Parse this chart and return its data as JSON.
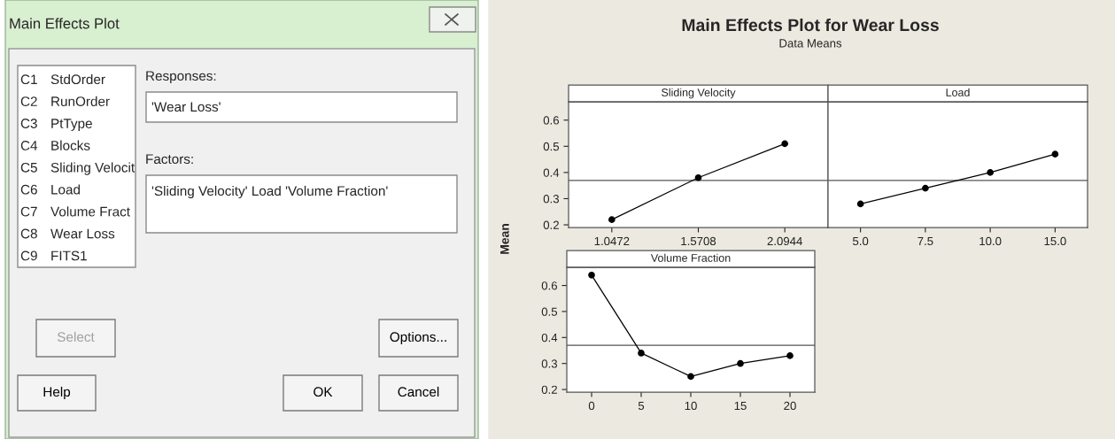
{
  "chart_data": [
    {
      "type": "other",
      "title": "Main Effects Plot",
      "annotations": [
        "C1",
        "StdOrder",
        "C2",
        "RunOrder",
        "C3",
        "PtType",
        "C4",
        "Blocks",
        "C5",
        "Sliding Velocit",
        "C6",
        "Load",
        "C7",
        "Volume Fract",
        "C8",
        "Wear Loss",
        "C9",
        "FITS1",
        "Responses:",
        "'Wear Loss'",
        "Factors:",
        "'Sliding Velocity' Load 'Volume Fraction'",
        "Select",
        "Options...",
        "Help",
        "OK",
        "Cancel"
      ]
    },
    {
      "type": "other",
      "title": "Main Effects Plot for Wear Loss",
      "subtitle": "Data Means"
    },
    {
      "type": "line",
      "title": "Sliding Velocity",
      "ylabel": "Mean",
      "categories": [
        "1.0472",
        "1.5708",
        "2.0944"
      ],
      "values": [
        0.22,
        0.38,
        0.51
      ],
      "color": "#000000",
      "marker": "circle",
      "ylim": [
        0.19,
        0.67
      ],
      "yticks": [
        0.2,
        0.3,
        0.4,
        0.5,
        0.6
      ],
      "ref_lines": [
        {
          "axis": "y",
          "value": 0.37
        }
      ]
    },
    {
      "type": "line",
      "title": "Load",
      "categories": [
        "5.0",
        "7.5",
        "10.0",
        "15.0"
      ],
      "values": [
        0.28,
        0.34,
        0.4,
        0.47
      ],
      "color": "#000000",
      "marker": "circle",
      "ylim": [
        0.19,
        0.67
      ],
      "yticks": [
        0.2,
        0.3,
        0.4,
        0.5,
        0.6
      ],
      "tick_labels": "x",
      "ref_lines": [
        {
          "axis": "y",
          "value": 0.37
        }
      ]
    },
    {
      "type": "line",
      "title": "Volume Fraction",
      "categories": [
        "0",
        "5",
        "10",
        "15",
        "20"
      ],
      "values": [
        0.64,
        0.34,
        0.25,
        0.3,
        0.33
      ],
      "color": "#000000",
      "marker": "circle",
      "ylim": [
        0.19,
        0.67
      ],
      "yticks": [
        0.2,
        0.3,
        0.4,
        0.5,
        0.6
      ],
      "ref_lines": [
        {
          "axis": "y",
          "value": 0.37
        }
      ]
    }
  ]
}
